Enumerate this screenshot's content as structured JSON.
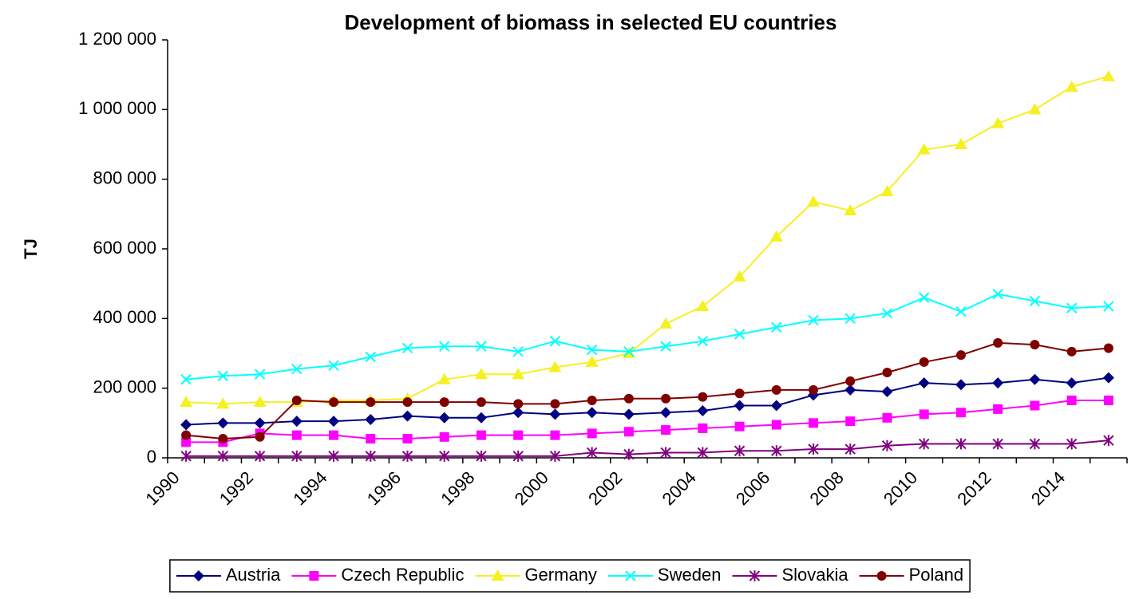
{
  "chart_data": {
    "type": "line",
    "title": "Development of biomass in selected EU countries",
    "y_label": "TJ",
    "categories": [
      "1990",
      null,
      "1992",
      null,
      "1994",
      null,
      "1996",
      null,
      "1998",
      null,
      "2000",
      null,
      "2002",
      null,
      "2004",
      null,
      "2006",
      null,
      "2008",
      null,
      "2010",
      null,
      "2012",
      null,
      "2014",
      null
    ],
    "ylim": [
      0,
      1200000
    ],
    "yticks": [
      0,
      {
        "value": 200000,
        "label": "200 000"
      },
      {
        "value": 400000,
        "label": "400 000"
      },
      {
        "value": 600000,
        "label": "600 000"
      },
      {
        "value": 800000,
        "label": "800 000"
      },
      {
        "value": 1000000,
        "label": "1 000 000"
      },
      {
        "value": 1200000,
        "label": "1 200 000"
      }
    ],
    "grid": false,
    "legend": "bottom",
    "series": [
      {
        "name": "Austria",
        "color": "#000080",
        "marker": "diamond",
        "values": [
          95000,
          100000,
          100000,
          105000,
          105000,
          110000,
          120000,
          115000,
          115000,
          130000,
          125000,
          130000,
          125000,
          130000,
          135000,
          150000,
          150000,
          180000,
          195000,
          190000,
          215000,
          210000,
          215000,
          225000,
          215000,
          230000
        ]
      },
      {
        "name": "Czech Republic",
        "color": "#ff00ff",
        "marker": "square",
        "values": [
          45000,
          45000,
          70000,
          65000,
          65000,
          55000,
          55000,
          60000,
          65000,
          65000,
          65000,
          70000,
          75000,
          80000,
          85000,
          90000,
          95000,
          100000,
          105000,
          115000,
          125000,
          130000,
          140000,
          150000,
          165000,
          165000
        ]
      },
      {
        "name": "Germany",
        "color": "#f5f020",
        "marker": "triangle",
        "values": [
          160000,
          155000,
          160000,
          160000,
          165000,
          165000,
          170000,
          225000,
          240000,
          240000,
          260000,
          275000,
          300000,
          385000,
          435000,
          520000,
          635000,
          735000,
          710000,
          765000,
          885000,
          900000,
          960000,
          1000000,
          1065000,
          1095000
        ]
      },
      {
        "name": "Sweden",
        "color": "#00ffff",
        "marker": "x",
        "values": [
          225000,
          235000,
          240000,
          255000,
          265000,
          290000,
          315000,
          320000,
          320000,
          305000,
          335000,
          310000,
          305000,
          320000,
          335000,
          355000,
          375000,
          395000,
          400000,
          415000,
          460000,
          420000,
          470000,
          450000,
          430000,
          435000
        ]
      },
      {
        "name": "Slovakia",
        "color": "#800080",
        "marker": "star",
        "values": [
          5000,
          5000,
          5000,
          5000,
          5000,
          5000,
          5000,
          5000,
          5000,
          5000,
          5000,
          15000,
          10000,
          15000,
          15000,
          20000,
          20000,
          25000,
          25000,
          35000,
          40000,
          40000,
          40000,
          40000,
          40000,
          50000
        ]
      },
      {
        "name": "Poland",
        "color": "#800000",
        "marker": "circle",
        "values": [
          65000,
          55000,
          60000,
          165000,
          160000,
          160000,
          160000,
          160000,
          160000,
          155000,
          155000,
          165000,
          170000,
          170000,
          175000,
          185000,
          195000,
          195000,
          220000,
          245000,
          275000,
          295000,
          330000,
          325000,
          305000,
          315000
        ]
      }
    ]
  }
}
